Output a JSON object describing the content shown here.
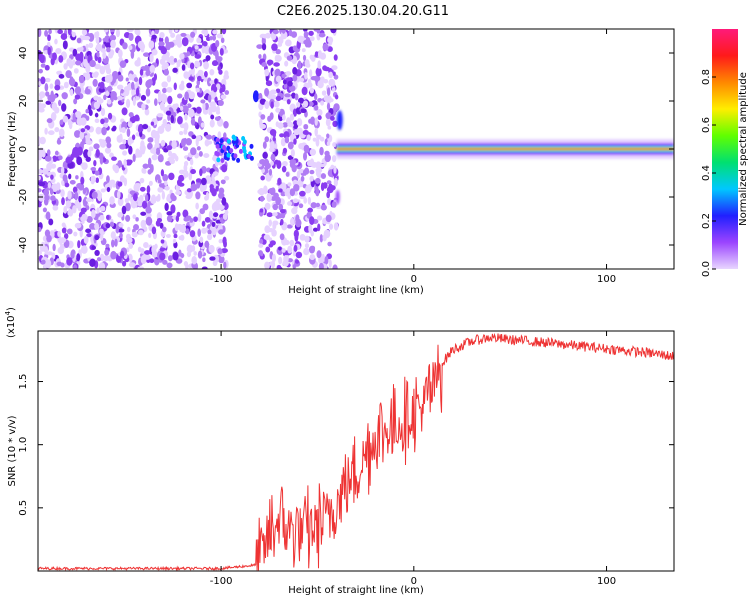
{
  "title": "C2E6.2025.130.04.20.G11",
  "chart_data": [
    {
      "type": "heatmap",
      "xlabel": "Height of straight line (km)",
      "ylabel": "Frequency (Hz)",
      "xlim": [
        -195,
        135
      ],
      "ylim": [
        -50,
        50
      ],
      "xticks": [
        -100,
        0,
        100
      ],
      "xtick_labels": [
        "-100",
        "0",
        "100"
      ],
      "yticks": [
        -40,
        -20,
        0,
        20,
        40
      ],
      "ytick_labels": [
        "-40",
        "-20",
        "0",
        "20",
        "40"
      ],
      "colorbar": {
        "label": "Normalized spectral amplitude",
        "range": [
          0,
          1
        ],
        "ticks": [
          0.0,
          0.2,
          0.4,
          0.6,
          0.8
        ],
        "tick_labels": [
          "0.0",
          "0.2",
          "0.4",
          "0.6",
          "0.8"
        ],
        "colors": [
          "#e8d6ff",
          "#9b44ff",
          "#2020ff",
          "#00c8ff",
          "#00e070",
          "#60ff00",
          "#ffee00",
          "#ff8800",
          "#ff1a1a",
          "#ff1a7a"
        ]
      },
      "regions": [
        {
          "name": "noise",
          "x": [
            -195,
            -97
          ],
          "amplitude": 0.15
        },
        {
          "name": "blob",
          "x": [
            -103,
            -84
          ],
          "freq_center": 0,
          "amplitude": 0.3
        },
        {
          "name": "gap",
          "x": [
            -84,
            -80
          ],
          "amplitude": 0
        },
        {
          "name": "noise",
          "x": [
            -80,
            -40
          ],
          "amplitude": 0.15
        },
        {
          "name": "signal",
          "x": [
            -40,
            135
          ],
          "freq_center": 0,
          "amplitude": 1.0
        }
      ]
    },
    {
      "type": "line",
      "xlabel": "Height of straight line (km)",
      "ylabel": "SNR (10 * v/v)",
      "y_multiplier": "(x10",
      "y_multiplier_exp": "4",
      "y_multiplier_close": ")",
      "xlim": [
        -195,
        135
      ],
      "ylim": [
        0,
        1.9
      ],
      "xticks": [
        -100,
        0,
        100
      ],
      "xtick_labels": [
        "-100",
        "0",
        "100"
      ],
      "yticks": [
        0.5,
        1.0,
        1.5
      ],
      "ytick_labels": [
        "0.5",
        "1.0",
        "1.5"
      ],
      "color": "#ee3333",
      "x": [
        -195,
        -150,
        -100,
        -80,
        -75,
        -70,
        -60,
        -50,
        -40,
        -30,
        -20,
        -10,
        0,
        5,
        10,
        15,
        20,
        30,
        40,
        50,
        60,
        80,
        100,
        120,
        135
      ],
      "y": [
        0.02,
        0.02,
        0.02,
        0.05,
        0.3,
        0.4,
        0.3,
        0.35,
        0.55,
        0.8,
        1.05,
        1.15,
        1.25,
        1.3,
        1.45,
        1.65,
        1.75,
        1.82,
        1.85,
        1.83,
        1.82,
        1.79,
        1.76,
        1.73,
        1.7
      ]
    }
  ]
}
